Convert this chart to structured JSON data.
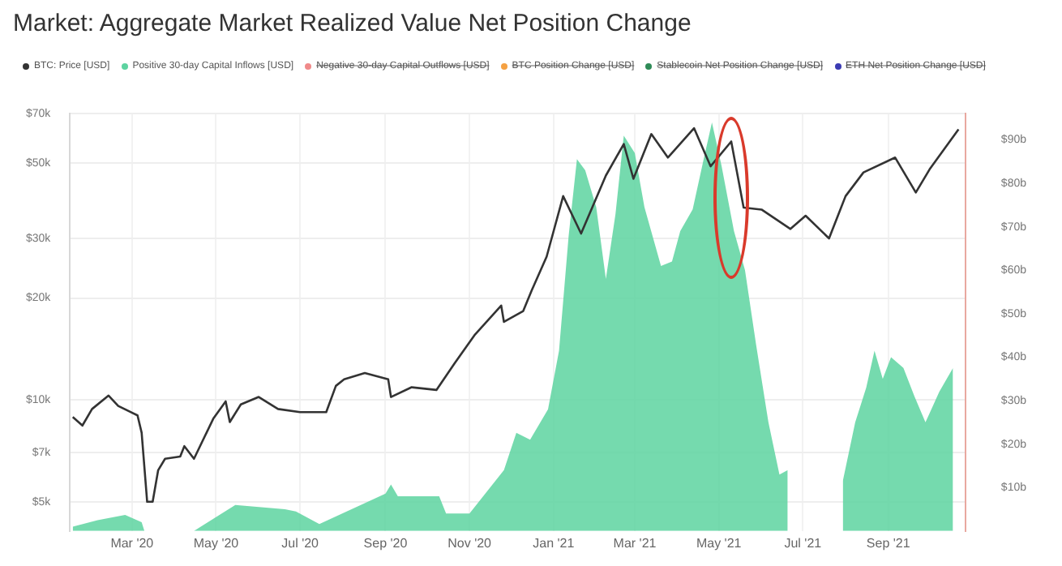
{
  "chart_data": {
    "type": "line",
    "title": "Market: Aggregate Market Realized Value Net Position Change",
    "xlim": [
      "2020-01-16",
      "2021-10-27"
    ],
    "xticks": [
      {
        "value": "2020-03-01",
        "label": "Mar '20"
      },
      {
        "value": "2020-05-01",
        "label": "May '20"
      },
      {
        "value": "2020-07-01",
        "label": "Jul '20"
      },
      {
        "value": "2020-09-01",
        "label": "Sep '20"
      },
      {
        "value": "2020-11-01",
        "label": "Nov '20"
      },
      {
        "value": "2021-01-01",
        "label": "Jan '21"
      },
      {
        "value": "2021-03-01",
        "label": "Mar '21"
      },
      {
        "value": "2021-05-01",
        "label": "May '21"
      },
      {
        "value": "2021-07-01",
        "label": "Jul '21"
      },
      {
        "value": "2021-09-01",
        "label": "Sep '21"
      }
    ],
    "log": "y",
    "ylim": [
      4100,
      70000
    ],
    "yticks": [
      {
        "value": 5000,
        "label": "$5k"
      },
      {
        "value": 7000,
        "label": "$7k"
      },
      {
        "value": 10000,
        "label": "$10k"
      },
      {
        "value": 20000,
        "label": "$20k"
      },
      {
        "value": 30000,
        "label": "$30k"
      },
      {
        "value": 50000,
        "label": "$50k"
      },
      {
        "value": 70000,
        "label": "$70k"
      }
    ],
    "y2lim": [
      0,
      96
    ],
    "y2ticks": [
      {
        "value": 10,
        "label": "$10b"
      },
      {
        "value": 20,
        "label": "$20b"
      },
      {
        "value": 30,
        "label": "$30b"
      },
      {
        "value": 40,
        "label": "$40b"
      },
      {
        "value": 50,
        "label": "$50b"
      },
      {
        "value": 60,
        "label": "$60b"
      },
      {
        "value": 70,
        "label": "$70b"
      },
      {
        "value": 80,
        "label": "$80b"
      },
      {
        "value": 90,
        "label": "$90b"
      }
    ],
    "grid": true,
    "legend": "top left",
    "marker": "none",
    "series": [
      {
        "name": "BTC: Price [USD]",
        "type": "line",
        "color": "#333333",
        "x": [
          "2020-01-18",
          "2020-01-25",
          "2020-02-01",
          "2020-02-13",
          "2020-02-20",
          "2020-03-05",
          "2020-03-08",
          "2020-03-12",
          "2020-03-16",
          "2020-03-20",
          "2020-03-25",
          "2020-04-05",
          "2020-04-08",
          "2020-04-15",
          "2020-04-29",
          "2020-05-08",
          "2020-05-11",
          "2020-05-19",
          "2020-06-01",
          "2020-06-15",
          "2020-07-01",
          "2020-07-20",
          "2020-07-27",
          "2020-08-02",
          "2020-08-17",
          "2020-09-03",
          "2020-09-05",
          "2020-09-20",
          "2020-10-08",
          "2020-10-21",
          "2020-11-05",
          "2020-11-24",
          "2020-11-26",
          "2020-12-10",
          "2020-12-16",
          "2020-12-27",
          "2021-01-08",
          "2021-01-21",
          "2021-02-08",
          "2021-02-21",
          "2021-02-28",
          "2021-03-13",
          "2021-03-25",
          "2021-04-13",
          "2021-04-25",
          "2021-05-10",
          "2021-05-19",
          "2021-06-01",
          "2021-06-22",
          "2021-07-03",
          "2021-07-20",
          "2021-08-01",
          "2021-08-14",
          "2021-09-06",
          "2021-09-21",
          "2021-10-01",
          "2021-10-22"
        ],
        "values": [
          8900,
          8400,
          9400,
          10300,
          9600,
          9000,
          8000,
          5000,
          5000,
          6200,
          6700,
          6800,
          7300,
          6700,
          8800,
          9900,
          8600,
          9700,
          10200,
          9400,
          9200,
          9200,
          11000,
          11500,
          12000,
          11500,
          10200,
          10900,
          10700,
          12800,
          15600,
          19000,
          17000,
          18300,
          21000,
          26500,
          40000,
          31000,
          46000,
          57000,
          45000,
          61000,
          52000,
          63500,
          49000,
          58000,
          37000,
          36500,
          32000,
          35000,
          30000,
          40000,
          47000,
          52000,
          41000,
          48000,
          63000
        ]
      },
      {
        "name": "Positive 30-day Capital Inflows [USD]",
        "type": "area",
        "axis": "y2",
        "color": "#5dd3a0",
        "x": [
          "2020-01-18",
          "2020-02-05",
          "2020-02-25",
          "2020-03-08",
          "2020-03-10",
          "2020-04-15",
          "2020-05-15",
          "2020-06-20",
          "2020-06-28",
          "2020-07-15",
          "2020-09-01",
          "2020-09-05",
          "2020-09-10",
          "2020-10-10",
          "2020-10-15",
          "2020-11-01",
          "2020-11-26",
          "2020-12-05",
          "2020-12-15",
          "2020-12-28",
          "2021-01-05",
          "2021-01-12",
          "2021-01-18",
          "2021-01-24",
          "2021-02-01",
          "2021-02-08",
          "2021-02-15",
          "2021-02-21",
          "2021-03-01",
          "2021-03-08",
          "2021-03-20",
          "2021-03-28",
          "2021-04-03",
          "2021-04-12",
          "2021-04-20",
          "2021-04-26",
          "2021-05-03",
          "2021-05-12",
          "2021-05-20",
          "2021-05-28",
          "2021-06-06",
          "2021-06-14",
          "2021-06-20",
          "2021-06-22",
          "2021-07-30",
          "2021-08-08",
          "2021-08-16",
          "2021-08-22",
          "2021-08-28",
          "2021-09-03",
          "2021-09-12",
          "2021-09-20",
          "2021-09-28",
          "2021-10-08",
          "2021-10-18"
        ],
        "values": [
          1,
          2.5,
          3.7,
          2,
          0,
          0,
          6,
          5,
          4.5,
          1.6,
          8.6,
          10.7,
          8,
          8,
          4,
          4,
          14,
          22.6,
          21,
          28,
          41.5,
          68,
          85.6,
          83,
          74.5,
          58,
          73,
          91,
          87,
          74.5,
          61,
          62,
          69,
          74,
          85.6,
          94,
          84,
          69,
          60,
          43,
          25,
          13,
          14,
          null,
          11.5,
          25,
          33,
          41.5,
          35,
          40,
          37.5,
          31,
          25,
          32,
          37.5
        ]
      },
      {
        "name": "Negative 30-day Capital Outflows [USD]",
        "type": "line",
        "color": "#f08a8a"
      },
      {
        "name": "BTC Position Change [USD]",
        "type": "line",
        "color": "#f5a142"
      },
      {
        "name": "Stablecoin Net Position Change [USD]",
        "type": "line",
        "color": "#2e8b57"
      },
      {
        "name": "ETH Net Position Change [USD]",
        "type": "line",
        "color": "#3b3bb3"
      }
    ]
  }
}
